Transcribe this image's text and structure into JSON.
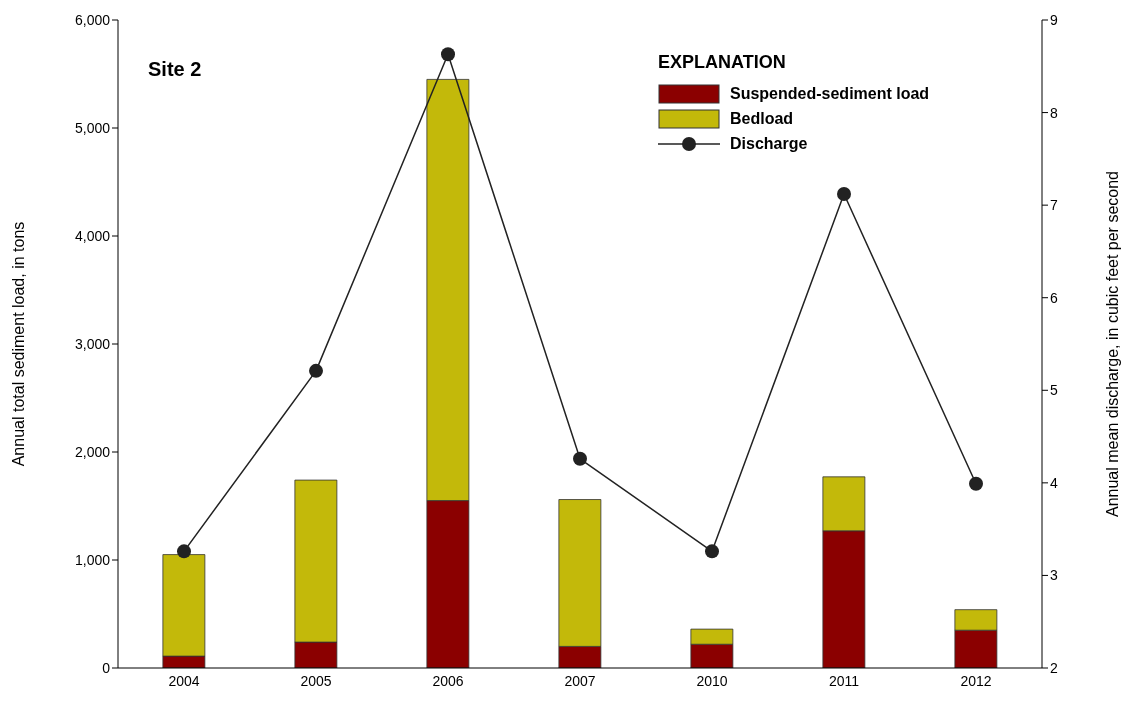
{
  "chart_data": {
    "type": "bar",
    "stacked": true,
    "categories": [
      "2004",
      "2005",
      "2006",
      "2007",
      "2010",
      "2011",
      "2012"
    ],
    "series": [
      {
        "name": "Suspended-sediment load",
        "color": "#8b0000",
        "values": [
          110,
          240,
          1550,
          200,
          220,
          1270,
          350
        ]
      },
      {
        "name": "Bedload",
        "color": "#c3b90a",
        "values": [
          940,
          1500,
          3900,
          1360,
          140,
          500,
          190
        ]
      },
      {
        "name": "Discharge",
        "type": "line",
        "axis": "y2",
        "color": "#222222",
        "values": [
          3.26,
          5.21,
          8.63,
          4.26,
          3.26,
          7.12,
          3.99
        ]
      }
    ],
    "ylim": [
      0,
      6000
    ],
    "yticks": [
      {
        "value": 0,
        "label": "0"
      },
      {
        "value": 1000,
        "label": "1,000"
      },
      {
        "value": 2000,
        "label": "2,000"
      },
      {
        "value": 3000,
        "label": "3,000"
      },
      {
        "value": 4000,
        "label": "4,000"
      },
      {
        "value": 5000,
        "label": "5,000"
      },
      {
        "value": 6000,
        "label": "6,000"
      }
    ],
    "y2lim": [
      2,
      9
    ],
    "y2ticks": [
      2,
      3,
      4,
      5,
      6,
      7,
      8,
      9
    ],
    "ylabel": "Annual total sediment load, in tons",
    "y2label": "Annual mean discharge, in cubic feet per second",
    "legend_title": "EXPLANATION",
    "legend": "top right",
    "annotations": [
      "Site 2"
    ],
    "marker": "circle",
    "line_style": "solid",
    "grid": false
  }
}
